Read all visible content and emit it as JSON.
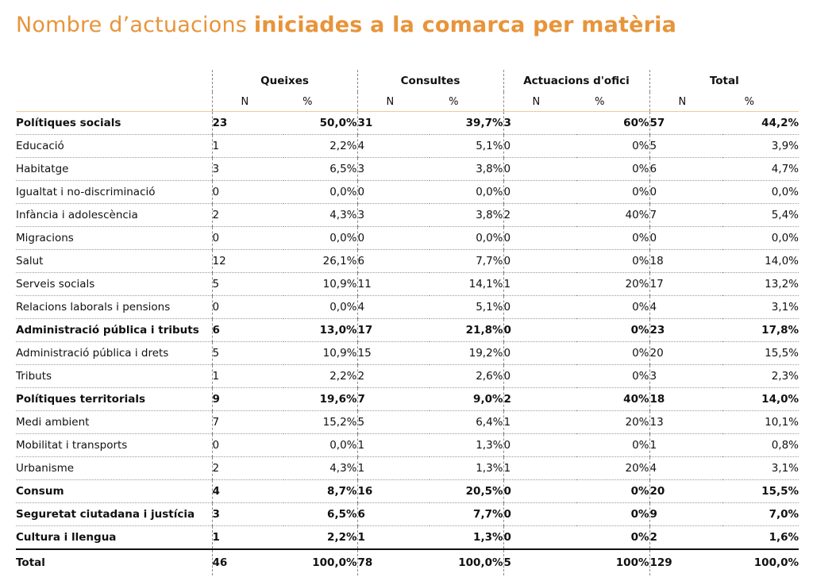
{
  "title": {
    "normal": "Nombre d’actuacions ",
    "bold": "iniciades a la comarca per matèria"
  },
  "headers": {
    "groups": [
      "Queixes",
      "Consultes",
      "Actuacions d'ofici",
      "Total"
    ],
    "n": "N",
    "pct": "%"
  },
  "rows": [
    {
      "label": "Polítiques socials",
      "bold": true,
      "q": [
        "23",
        "50,0%"
      ],
      "c": [
        "31",
        "39,7%"
      ],
      "o": [
        "3",
        "60%"
      ],
      "t": [
        "57",
        "44,2%"
      ]
    },
    {
      "label": "Educació",
      "bold": false,
      "q": [
        "1",
        "2,2%"
      ],
      "c": [
        "4",
        "5,1%"
      ],
      "o": [
        "0",
        "0%"
      ],
      "t": [
        "5",
        "3,9%"
      ]
    },
    {
      "label": "Habitatge",
      "bold": false,
      "q": [
        "3",
        "6,5%"
      ],
      "c": [
        "3",
        "3,8%"
      ],
      "o": [
        "0",
        "0%"
      ],
      "t": [
        "6",
        "4,7%"
      ]
    },
    {
      "label": "Igualtat i no-discriminació",
      "bold": false,
      "q": [
        "0",
        "0,0%"
      ],
      "c": [
        "0",
        "0,0%"
      ],
      "o": [
        "0",
        "0%"
      ],
      "t": [
        "0",
        "0,0%"
      ]
    },
    {
      "label": "Infància i adolescència",
      "bold": false,
      "q": [
        "2",
        "4,3%"
      ],
      "c": [
        "3",
        "3,8%"
      ],
      "o": [
        "2",
        "40%"
      ],
      "t": [
        "7",
        "5,4%"
      ]
    },
    {
      "label": "Migracions",
      "bold": false,
      "q": [
        "0",
        "0,0%"
      ],
      "c": [
        "0",
        "0,0%"
      ],
      "o": [
        "0",
        "0%"
      ],
      "t": [
        "0",
        "0,0%"
      ]
    },
    {
      "label": "Salut",
      "bold": false,
      "q": [
        "12",
        "26,1%"
      ],
      "c": [
        "6",
        "7,7%"
      ],
      "o": [
        "0",
        "0%"
      ],
      "t": [
        "18",
        "14,0%"
      ]
    },
    {
      "label": "Serveis socials",
      "bold": false,
      "q": [
        "5",
        "10,9%"
      ],
      "c": [
        "11",
        "14,1%"
      ],
      "o": [
        "1",
        "20%"
      ],
      "t": [
        "17",
        "13,2%"
      ]
    },
    {
      "label": "Relacions laborals i pensions",
      "bold": false,
      "q": [
        "0",
        "0,0%"
      ],
      "c": [
        "4",
        "5,1%"
      ],
      "o": [
        "0",
        "0%"
      ],
      "t": [
        "4",
        "3,1%"
      ]
    },
    {
      "label": "Administració pública i tributs",
      "bold": true,
      "q": [
        "6",
        "13,0%"
      ],
      "c": [
        "17",
        "21,8%"
      ],
      "o": [
        "0",
        "0%"
      ],
      "t": [
        "23",
        "17,8%"
      ]
    },
    {
      "label": "Administració pública i drets",
      "bold": false,
      "q": [
        "5",
        "10,9%"
      ],
      "c": [
        "15",
        "19,2%"
      ],
      "o": [
        "0",
        "0%"
      ],
      "t": [
        "20",
        "15,5%"
      ]
    },
    {
      "label": "Tributs",
      "bold": false,
      "q": [
        "1",
        "2,2%"
      ],
      "c": [
        "2",
        "2,6%"
      ],
      "o": [
        "0",
        "0%"
      ],
      "t": [
        "3",
        "2,3%"
      ]
    },
    {
      "label": "Polítiques territorials",
      "bold": true,
      "q": [
        "9",
        "19,6%"
      ],
      "c": [
        "7",
        "9,0%"
      ],
      "o": [
        "2",
        "40%"
      ],
      "t": [
        "18",
        "14,0%"
      ]
    },
    {
      "label": "Medi ambient",
      "bold": false,
      "q": [
        "7",
        "15,2%"
      ],
      "c": [
        "5",
        "6,4%"
      ],
      "o": [
        "1",
        "20%"
      ],
      "t": [
        "13",
        "10,1%"
      ]
    },
    {
      "label": "Mobilitat i transports",
      "bold": false,
      "q": [
        "0",
        "0,0%"
      ],
      "c": [
        "1",
        "1,3%"
      ],
      "o": [
        "0",
        "0%"
      ],
      "t": [
        "1",
        "0,8%"
      ]
    },
    {
      "label": "Urbanisme",
      "bold": false,
      "q": [
        "2",
        "4,3%"
      ],
      "c": [
        "1",
        "1,3%"
      ],
      "o": [
        "1",
        "20%"
      ],
      "t": [
        "4",
        "3,1%"
      ]
    },
    {
      "label": "Consum",
      "bold": true,
      "q": [
        "4",
        "8,7%"
      ],
      "c": [
        "16",
        "20,5%"
      ],
      "o": [
        "0",
        "0%"
      ],
      "t": [
        "20",
        "15,5%"
      ]
    },
    {
      "label": "Seguretat ciutadana i justícia",
      "bold": true,
      "q": [
        "3",
        "6,5%"
      ],
      "c": [
        "6",
        "7,7%"
      ],
      "o": [
        "0",
        "0%"
      ],
      "t": [
        "9",
        "7,0%"
      ]
    },
    {
      "label": "Cultura i llengua",
      "bold": true,
      "q": [
        "1",
        "2,2%"
      ],
      "c": [
        "1",
        "1,3%"
      ],
      "o": [
        "0",
        "0%"
      ],
      "t": [
        "2",
        "1,6%"
      ]
    }
  ],
  "total": {
    "label": "Total",
    "q": [
      "46",
      "100,0%"
    ],
    "c": [
      "78",
      "100,0%"
    ],
    "o": [
      "5",
      "100%"
    ],
    "t": [
      "129",
      "100,0%"
    ]
  },
  "colors": {
    "title": "#e8943a",
    "header_rule": "#f3c995"
  }
}
